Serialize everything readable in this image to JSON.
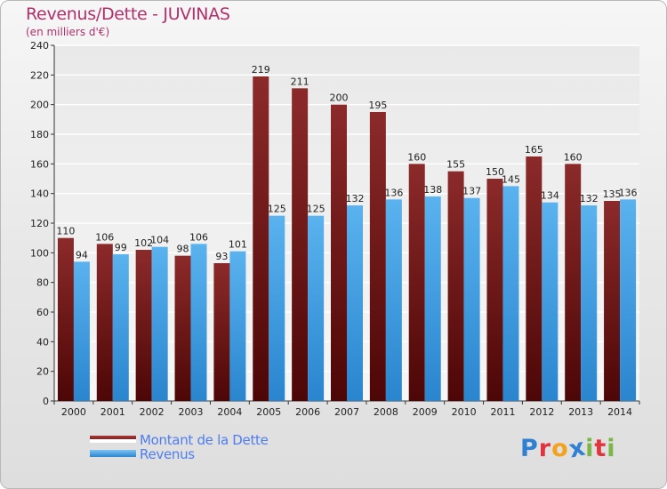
{
  "header": {
    "title": "Revenus/Dette - JUVINAS",
    "subtitle": "(en milliers d'€)"
  },
  "colors": {
    "dette": "#7a1a1a",
    "revenus": "#4aa3e6",
    "axis": "#333333",
    "grid": "#ffffff",
    "title": "#b0306a",
    "legend_text": "#4e7df0"
  },
  "legend": {
    "items": [
      {
        "label": "Montant de la Dette",
        "color": "#7a1a1a"
      },
      {
        "label": "Revenus",
        "color": "#4aa3e6"
      }
    ]
  },
  "logo": {
    "letters": [
      "P",
      "r",
      "o",
      "x",
      "i",
      "t",
      "i"
    ],
    "colors": [
      "#2f7fd3",
      "#e2343c",
      "#f2a21d",
      "#2f7fd3",
      "#7ab648",
      "#e2343c",
      "#7ab648"
    ],
    "text": "Proxiti"
  },
  "chart_data": {
    "type": "bar",
    "title": "Revenus/Dette - JUVINAS",
    "subtitle": "(en milliers d'€)",
    "categories": [
      "2000",
      "2001",
      "2002",
      "2003",
      "2004",
      "2005",
      "2006",
      "2007",
      "2008",
      "2009",
      "2010",
      "2011",
      "2012",
      "2013",
      "2014"
    ],
    "series": [
      {
        "name": "Montant de la Dette",
        "color": "#7a1a1a",
        "values": [
          110,
          106,
          102,
          98,
          93,
          219,
          211,
          200,
          195,
          160,
          155,
          150,
          165,
          160,
          135
        ]
      },
      {
        "name": "Revenus",
        "color": "#4aa3e6",
        "values": [
          94,
          99,
          104,
          106,
          101,
          125,
          125,
          132,
          136,
          138,
          137,
          145,
          134,
          132,
          136
        ]
      }
    ],
    "ylim": [
      0,
      240
    ],
    "yticks": [
      0,
      20,
      40,
      60,
      80,
      100,
      120,
      140,
      160,
      180,
      200,
      220,
      240
    ],
    "grid": true,
    "legend_position": "bottom-left"
  }
}
